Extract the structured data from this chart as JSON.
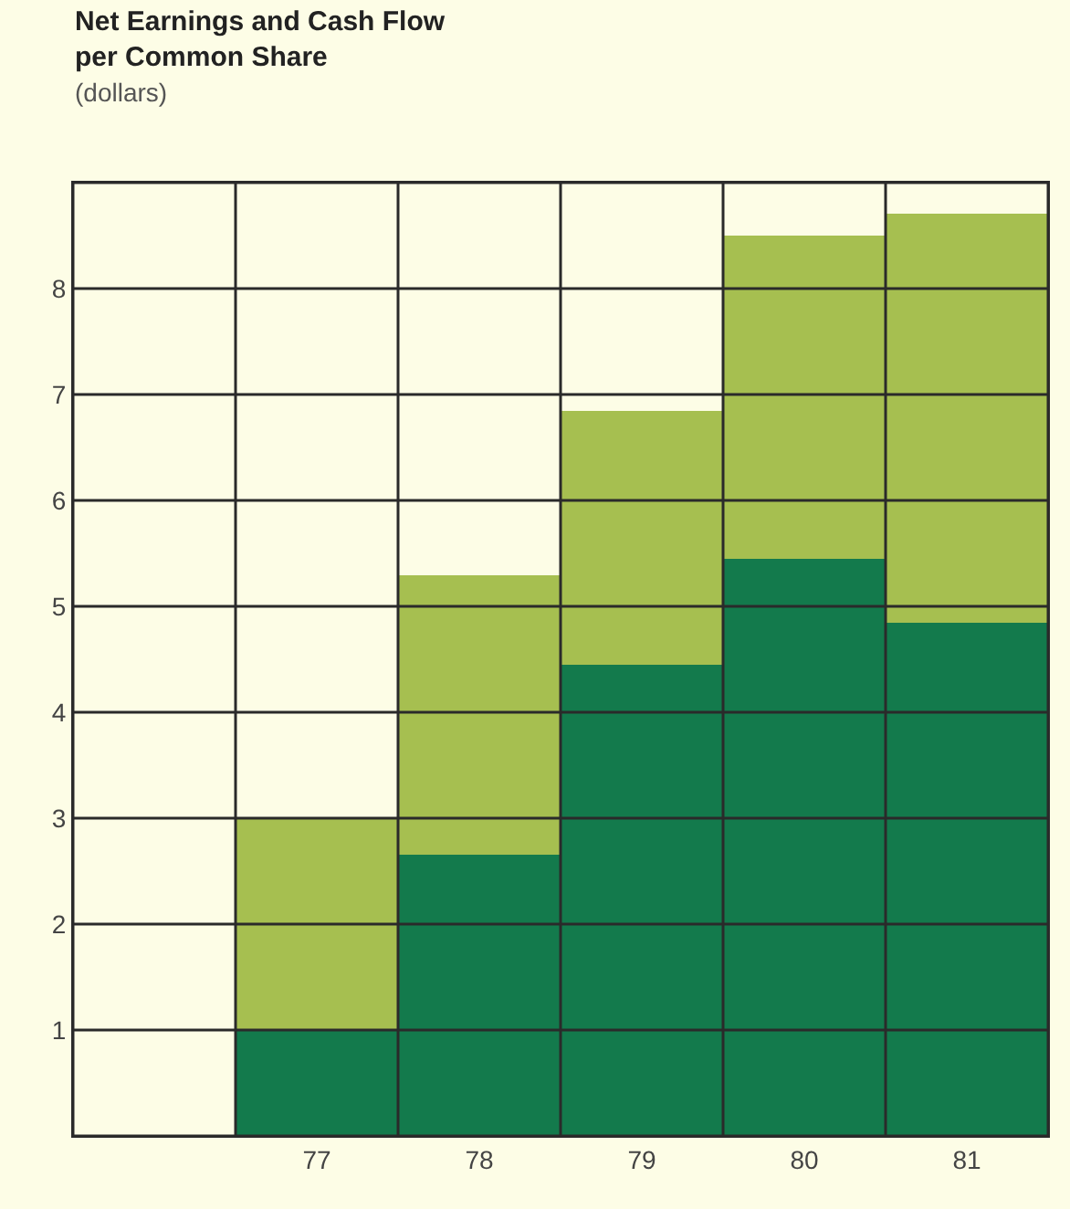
{
  "chart_data": {
    "type": "bar",
    "title": "Net Earnings and Cash Flow\nper Common Share",
    "subtitle": "(dollars)",
    "categories": [
      null,
      "77",
      "78",
      "79",
      "80",
      "81"
    ],
    "stacked": true,
    "series": [
      {
        "color": "#137a4c",
        "values": [
          null,
          1.0,
          2.65,
          4.45,
          5.45,
          4.85
        ]
      },
      {
        "color": "#a6bf50",
        "values": [
          null,
          2.0,
          2.65,
          2.4,
          3.05,
          3.85
        ]
      }
    ],
    "ylim": [
      0,
      9
    ],
    "yticks": [
      {
        "value": 0,
        "label": null
      },
      1,
      2,
      3,
      4,
      5,
      6,
      7,
      8,
      {
        "value": 9,
        "label": null
      }
    ],
    "grid": true
  }
}
